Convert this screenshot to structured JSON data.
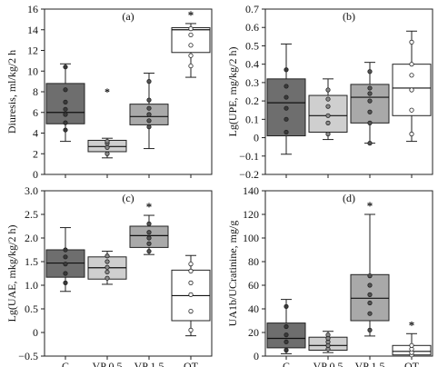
{
  "chart_data": [
    {
      "type": "box",
      "panel_label": "(a)",
      "ylabel": "Diuresis, ml/kg/2 h",
      "ylim": [
        0,
        16
      ],
      "yticks": [
        "0",
        "2",
        "4",
        "6",
        "8",
        "10",
        "12",
        "14",
        "16"
      ],
      "categories": [
        "C",
        "VP 0.5",
        "VP 1.5",
        "OT"
      ],
      "show_x_labels": false,
      "boxes": [
        {
          "category": "C",
          "whisker_low": 3.2,
          "q1": 4.9,
          "median": 6.0,
          "q3": 8.8,
          "whisker_high": 10.7,
          "points": [
            4.3,
            5.0,
            5.8,
            6.3,
            7.0,
            8.2,
            10.4
          ],
          "outliers": [],
          "asterisk": false
        },
        {
          "category": "VP 0.5",
          "whisker_low": 1.6,
          "q1": 2.2,
          "median": 2.7,
          "q3": 3.3,
          "whisker_high": 3.5,
          "points": [
            2.0,
            2.6,
            3.0,
            3.2
          ],
          "outliers": [
            8.0
          ],
          "asterisk": true
        },
        {
          "category": "VP 1.5",
          "whisker_low": 2.5,
          "q1": 4.8,
          "median": 5.6,
          "q3": 6.8,
          "whisker_high": 9.8,
          "points": [
            4.6,
            5.2,
            5.8,
            6.4,
            7.2,
            9.0
          ],
          "outliers": [],
          "asterisk": false
        },
        {
          "category": "OT",
          "whisker_low": 9.4,
          "q1": 11.8,
          "median": 14.0,
          "q3": 14.2,
          "whisker_high": 14.6,
          "points": [
            10.5,
            11.5,
            12.5,
            13.5,
            14.1
          ],
          "outliers": [],
          "asterisk": true
        }
      ]
    },
    {
      "type": "box",
      "panel_label": "(b)",
      "ylabel": "Lg(UPE, mg/kg/2 h)",
      "ylim": [
        -0.2,
        0.7
      ],
      "yticks": [
        "−0.2",
        "−0.1",
        "0",
        "0.1",
        "0.2",
        "0.3",
        "0.4",
        "0.5",
        "0.6",
        "0.7"
      ],
      "categories": [
        "C",
        "VP 0.5",
        "VP 1.5",
        "OT"
      ],
      "show_x_labels": false,
      "boxes": [
        {
          "category": "C",
          "whisker_low": -0.09,
          "q1": 0.01,
          "median": 0.19,
          "q3": 0.32,
          "whisker_high": 0.51,
          "points": [
            0.03,
            0.1,
            0.16,
            0.22,
            0.28,
            0.37
          ],
          "outliers": [],
          "asterisk": false
        },
        {
          "category": "VP 0.5",
          "whisker_low": -0.01,
          "q1": 0.03,
          "median": 0.12,
          "q3": 0.23,
          "whisker_high": 0.32,
          "points": [
            0.02,
            0.08,
            0.12,
            0.17,
            0.21,
            0.26
          ],
          "outliers": [],
          "asterisk": false
        },
        {
          "category": "VP 1.5",
          "whisker_low": -0.03,
          "q1": 0.08,
          "median": 0.22,
          "q3": 0.29,
          "whisker_high": 0.41,
          "points": [
            -0.03,
            0.08,
            0.14,
            0.2,
            0.24,
            0.27,
            0.36
          ],
          "outliers": [],
          "asterisk": false
        },
        {
          "category": "OT",
          "whisker_low": -0.02,
          "q1": 0.12,
          "median": 0.27,
          "q3": 0.4,
          "whisker_high": 0.58,
          "points": [
            0.02,
            0.15,
            0.26,
            0.34,
            0.4,
            0.52
          ],
          "outliers": [],
          "asterisk": false
        }
      ]
    },
    {
      "type": "box",
      "panel_label": "(c)",
      "ylabel": "Lg(UAE, mkg/kg/2 h)",
      "ylim": [
        -0.5,
        3.0
      ],
      "yticks": [
        "−0.5",
        "0",
        "0.5",
        "1.0",
        "1.5",
        "2.0",
        "2.5",
        "3.0"
      ],
      "categories": [
        "C",
        "VP 0.5",
        "VP 1.5",
        "OT"
      ],
      "show_x_labels": true,
      "boxes": [
        {
          "category": "C",
          "whisker_low": 0.87,
          "q1": 1.17,
          "median": 1.47,
          "q3": 1.75,
          "whisker_high": 2.22,
          "points": [
            1.05,
            1.25,
            1.45,
            1.6,
            1.75
          ],
          "outliers": [],
          "asterisk": false
        },
        {
          "category": "VP 0.5",
          "whisker_low": 1.02,
          "q1": 1.13,
          "median": 1.37,
          "q3": 1.6,
          "whisker_high": 1.72,
          "points": [
            1.15,
            1.28,
            1.38,
            1.5,
            1.62
          ],
          "outliers": [],
          "asterisk": false
        },
        {
          "category": "VP 1.5",
          "whisker_low": 1.65,
          "q1": 1.8,
          "median": 2.05,
          "q3": 2.25,
          "whisker_high": 2.48,
          "points": [
            1.72,
            1.88,
            2.0,
            2.12,
            2.3
          ],
          "outliers": [],
          "asterisk": true
        },
        {
          "category": "OT",
          "whisker_low": -0.07,
          "q1": 0.25,
          "median": 0.78,
          "q3": 1.32,
          "whisker_high": 1.63,
          "points": [
            0.05,
            0.45,
            0.8,
            1.05,
            1.3,
            1.45
          ],
          "outliers": [],
          "asterisk": false
        }
      ]
    },
    {
      "type": "box",
      "panel_label": "(d)",
      "ylabel": "UA1b/UCratinine, mg/g",
      "ylim": [
        0,
        140
      ],
      "yticks": [
        "0",
        "20",
        "40",
        "60",
        "80",
        "100",
        "120",
        "140"
      ],
      "categories": [
        "C",
        "VP 0.5",
        "VP 1.5",
        "OT"
      ],
      "show_x_labels": true,
      "boxes": [
        {
          "category": "C",
          "whisker_low": 2,
          "q1": 7,
          "median": 15,
          "q3": 28,
          "whisker_high": 48,
          "points": [
            5,
            12,
            18,
            25,
            42
          ],
          "outliers": [],
          "asterisk": false
        },
        {
          "category": "VP 0.5",
          "whisker_low": 3,
          "q1": 5,
          "median": 9,
          "q3": 16,
          "whisker_high": 21,
          "points": [
            6,
            9,
            12,
            15,
            18
          ],
          "outliers": [],
          "asterisk": false
        },
        {
          "category": "VP 1.5",
          "whisker_low": 17,
          "q1": 30,
          "median": 49,
          "q3": 69,
          "whisker_high": 120,
          "points": [
            22,
            36,
            45,
            52,
            60,
            68
          ],
          "outliers": [],
          "asterisk": true
        },
        {
          "category": "OT",
          "whisker_low": 0,
          "q1": 1,
          "median": 4,
          "q3": 9,
          "whisker_high": 19,
          "points": [
            1,
            3,
            6,
            9
          ],
          "outliers": [],
          "asterisk": true
        }
      ]
    }
  ]
}
